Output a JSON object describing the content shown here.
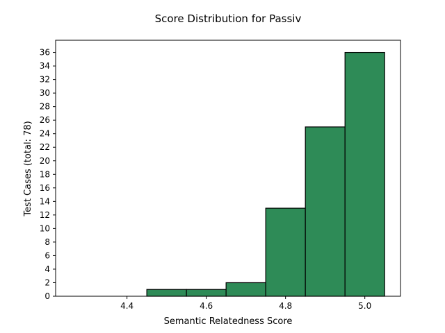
{
  "chart_data": {
    "type": "bar",
    "title": "Score Distribution for Passiv",
    "xlabel": "Semantic Relatedness Score",
    "ylabel": "Test Cases (total: 78)",
    "bins": [
      {
        "start": 4.45,
        "end": 4.55,
        "value": 1
      },
      {
        "start": 4.55,
        "end": 4.65,
        "value": 1
      },
      {
        "start": 4.65,
        "end": 4.75,
        "value": 2
      },
      {
        "start": 4.75,
        "end": 4.85,
        "value": 13
      },
      {
        "start": 4.85,
        "end": 4.95,
        "value": 25
      },
      {
        "start": 4.95,
        "end": 5.05,
        "value": 36
      }
    ],
    "xlim": [
      4.22,
      5.09
    ],
    "ylim": [
      0,
      37.8
    ],
    "xticks": [
      {
        "value": 4.4,
        "label": "4.4"
      },
      {
        "value": 4.6,
        "label": "4.6"
      },
      {
        "value": 4.8,
        "label": "4.8"
      },
      {
        "value": 5.0,
        "label": "5.0"
      }
    ],
    "yticks": [
      {
        "value": 0,
        "label": "0"
      },
      {
        "value": 2,
        "label": "2"
      },
      {
        "value": 4,
        "label": "4"
      },
      {
        "value": 6,
        "label": "6"
      },
      {
        "value": 8,
        "label": "8"
      },
      {
        "value": 10,
        "label": "10"
      },
      {
        "value": 12,
        "label": "12"
      },
      {
        "value": 14,
        "label": "14"
      },
      {
        "value": 16,
        "label": "16"
      },
      {
        "value": 18,
        "label": "18"
      },
      {
        "value": 20,
        "label": "20"
      },
      {
        "value": 22,
        "label": "22"
      },
      {
        "value": 24,
        "label": "24"
      },
      {
        "value": 26,
        "label": "26"
      },
      {
        "value": 28,
        "label": "28"
      },
      {
        "value": 30,
        "label": "30"
      },
      {
        "value": 32,
        "label": "32"
      },
      {
        "value": 34,
        "label": "34"
      },
      {
        "value": 36,
        "label": "36"
      }
    ],
    "bar_color": "#2e8b57",
    "edge_color": "#000000",
    "grid": false,
    "legend": "none"
  }
}
